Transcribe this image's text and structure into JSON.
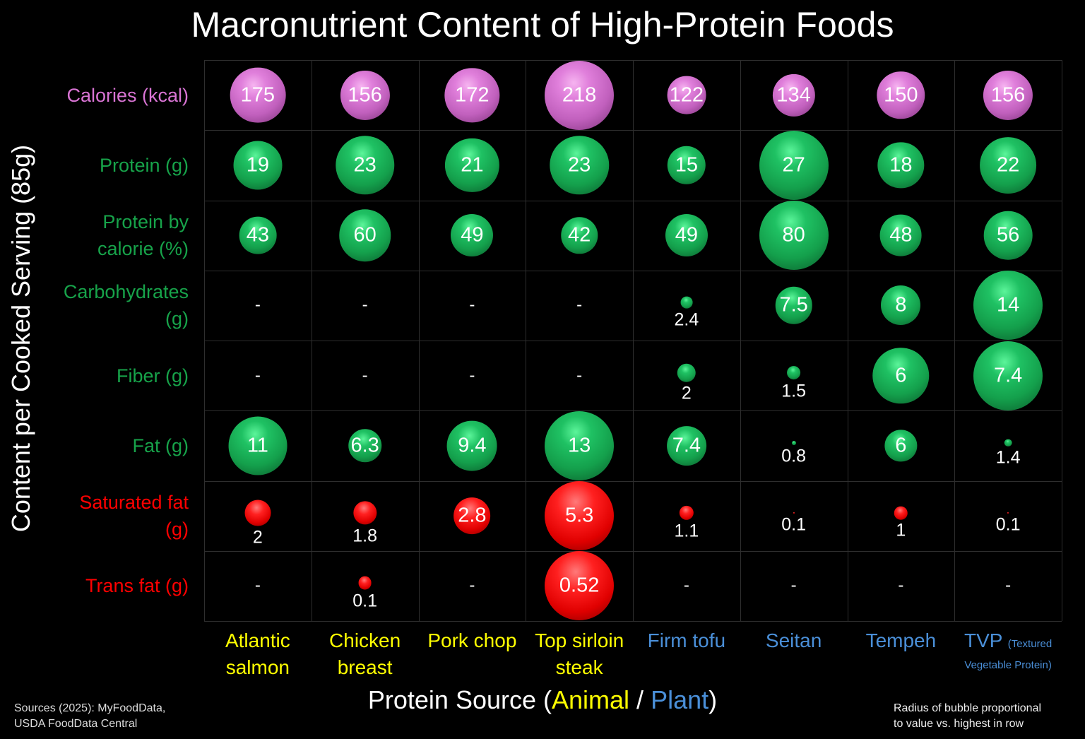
{
  "title": "Macronutrient Content of High-Protein Foods",
  "y_axis_label": "Content per Cooked Serving (85g)",
  "x_axis_label": {
    "prefix": "Protein Source (",
    "animal": "Animal",
    "separator": " / ",
    "plant": "Plant",
    "suffix": ")"
  },
  "colors": {
    "calories": "#d974d4",
    "green": "#17a34a",
    "red": "#ff0000",
    "animal": "#ffff00",
    "plant": "#4a8fd8",
    "gridline": "#2e2e2e"
  },
  "sources": {
    "line1": "Sources (2025): MyFoodData,",
    "line2": "USDA FoodData Central"
  },
  "note": {
    "line1": "Radius of bubble proportional",
    "line2": "to value vs. highest in row"
  },
  "columns": [
    {
      "line1": "Atlantic",
      "line2": "salmon",
      "group": "animal"
    },
    {
      "line1": "Chicken",
      "line2": "breast",
      "group": "animal"
    },
    {
      "line1": "Pork chop",
      "line2": "",
      "group": "animal"
    },
    {
      "line1": "Top sirloin",
      "line2": "steak",
      "group": "animal"
    },
    {
      "line1": "Firm tofu",
      "line2": "",
      "group": "plant"
    },
    {
      "line1": "Seitan",
      "line2": "",
      "group": "plant"
    },
    {
      "line1": "Tempeh",
      "line2": "",
      "group": "plant"
    },
    {
      "line1": "TVP",
      "line1_sub": "(Textured",
      "line2": "Vegetable Protein)",
      "group": "plant"
    }
  ],
  "rows": [
    {
      "line1": "Calories (kcal)",
      "line2": "",
      "color": "calories"
    },
    {
      "line1": "Protein (g)",
      "line2": "",
      "color": "green"
    },
    {
      "line1": "Protein by",
      "line2": "calorie (%)",
      "color": "green"
    },
    {
      "line1": "Carbohydrates",
      "line2": "(g)",
      "color": "green"
    },
    {
      "line1": "Fiber (g)",
      "line2": "",
      "color": "green"
    },
    {
      "line1": "Fat (g)",
      "line2": "",
      "color": "green"
    },
    {
      "line1": "Saturated fat",
      "line2": "(g)",
      "color": "red"
    },
    {
      "line1": "Trans fat (g)",
      "line2": "",
      "color": "red"
    }
  ],
  "chart_data": {
    "type": "bubble-matrix",
    "title": "Macronutrient Content of High-Protein Foods",
    "xlabel": "Protein Source (Animal / Plant)",
    "ylabel": "Content per Cooked Serving (85g)",
    "categories": [
      "Atlantic salmon",
      "Chicken breast",
      "Pork chop",
      "Top sirloin steak",
      "Firm tofu",
      "Seitan",
      "Tempeh",
      "TVP (Textured Vegetable Protein)"
    ],
    "category_groups": [
      "Animal",
      "Animal",
      "Animal",
      "Animal",
      "Plant",
      "Plant",
      "Plant",
      "Plant"
    ],
    "series": [
      {
        "name": "Calories (kcal)",
        "values": [
          175,
          156,
          172,
          218,
          122,
          134,
          150,
          156
        ],
        "labels": [
          "175",
          "156",
          "172",
          "218",
          "122",
          "134",
          "150",
          "156"
        ]
      },
      {
        "name": "Protein (g)",
        "values": [
          19,
          23,
          21,
          23,
          15,
          27,
          18,
          22
        ],
        "labels": [
          "19",
          "23",
          "21",
          "23",
          "15",
          "27",
          "18",
          "22"
        ]
      },
      {
        "name": "Protein by calorie (%)",
        "values": [
          43,
          60,
          49,
          42,
          49,
          80,
          48,
          56
        ],
        "labels": [
          "43",
          "60",
          "49",
          "42",
          "49",
          "80",
          "48",
          "56"
        ]
      },
      {
        "name": "Carbohydrates (g)",
        "values": [
          null,
          null,
          null,
          null,
          2.4,
          7.5,
          8,
          14
        ],
        "labels": [
          "-",
          "-",
          "-",
          "-",
          "2.4",
          "7.5",
          "8",
          "14"
        ]
      },
      {
        "name": "Fiber (g)",
        "values": [
          null,
          null,
          null,
          null,
          2,
          1.5,
          6,
          7.4
        ],
        "labels": [
          "-",
          "-",
          "-",
          "-",
          "2",
          "1.5",
          "6",
          "7.4"
        ]
      },
      {
        "name": "Fat (g)",
        "values": [
          11,
          6.3,
          9.4,
          13,
          7.4,
          0.8,
          6,
          1.4
        ],
        "labels": [
          "11",
          "6.3",
          "9.4",
          "13",
          "7.4",
          "0.8",
          "6",
          "1.4"
        ]
      },
      {
        "name": "Saturated fat (g)",
        "values": [
          2,
          1.8,
          2.8,
          5.3,
          1.1,
          0.1,
          1,
          0.1
        ],
        "labels": [
          "2",
          "1.8",
          "2.8",
          "5.3",
          "1.1",
          "0.1",
          "1",
          "0.1"
        ]
      },
      {
        "name": "Trans fat (g)",
        "values": [
          null,
          0.1,
          null,
          0.52,
          null,
          null,
          null,
          null
        ],
        "labels": [
          "-",
          "0.1",
          "-",
          "0.52",
          "-",
          "-",
          "-",
          "-"
        ]
      }
    ],
    "encoding": "Radius of bubble proportional to value vs. highest in row",
    "grid": true,
    "legend": "none"
  }
}
